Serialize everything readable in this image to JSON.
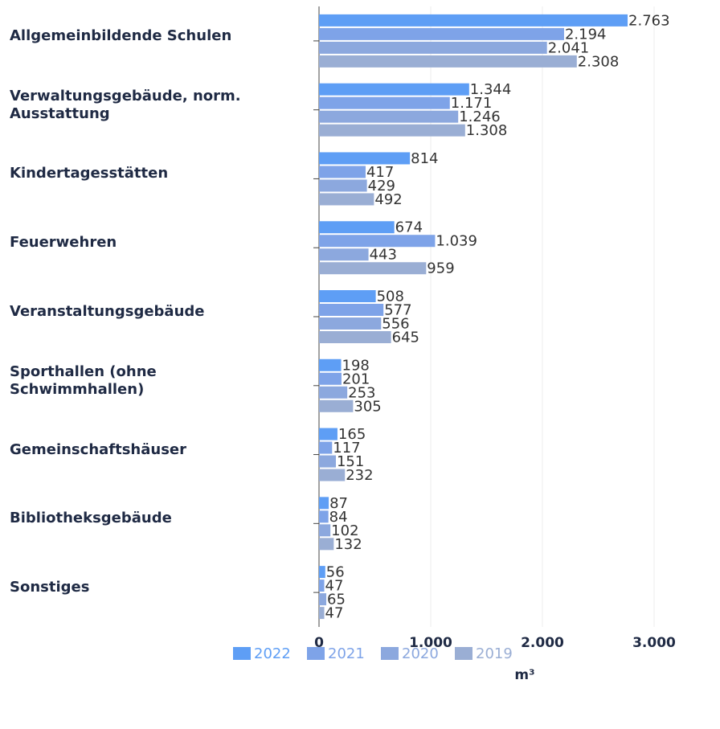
{
  "chart_data": {
    "type": "bar",
    "orientation": "horizontal",
    "categories": [
      "Allgemeinbildende Schulen",
      "Verwaltungsgebäude, norm. Ausstattung",
      "Kindertagesstätten",
      "Feuerwehren",
      "Veranstaltungsgebäude",
      "Sporthallen (ohne Schwimmhallen)",
      "Gemeinschaftshäuser",
      "Bibliotheksgebäude",
      "Sonstiges"
    ],
    "series": [
      {
        "name": "2022",
        "color": "#5e9ef5",
        "values": [
          2763,
          1344,
          814,
          674,
          508,
          198,
          165,
          87,
          56
        ],
        "value_labels": [
          "2.763",
          "1.344",
          "814",
          "674",
          "508",
          "198",
          "165",
          "87",
          "56"
        ]
      },
      {
        "name": "2021",
        "color": "#7ea3e8",
        "values": [
          2194,
          1171,
          417,
          1039,
          577,
          201,
          117,
          84,
          47
        ],
        "value_labels": [
          "2.194",
          "1.171",
          "417",
          "1.039",
          "577",
          "201",
          "117",
          "84",
          "47"
        ]
      },
      {
        "name": "2020",
        "color": "#8ca8de",
        "values": [
          2041,
          1246,
          429,
          443,
          556,
          253,
          151,
          102,
          65
        ],
        "value_labels": [
          "2.041",
          "1.246",
          "429",
          "443",
          "556",
          "253",
          "151",
          "102",
          "65"
        ]
      },
      {
        "name": "2019",
        "color": "#9aaed4",
        "values": [
          2308,
          1308,
          492,
          959,
          645,
          305,
          232,
          132,
          47
        ],
        "value_labels": [
          "2.308",
          "1.308",
          "492",
          "959",
          "645",
          "305",
          "232",
          "132",
          "47"
        ]
      }
    ],
    "xlabel": "m³",
    "xlim": [
      0,
      3590
    ],
    "xticks": [
      0,
      {
        "value": 1000,
        "label": "1.000"
      },
      {
        "value": 2000,
        "label": "2.000"
      },
      {
        "value": 3000,
        "label": "3.000"
      }
    ],
    "grid": true,
    "legend": "bottom"
  }
}
